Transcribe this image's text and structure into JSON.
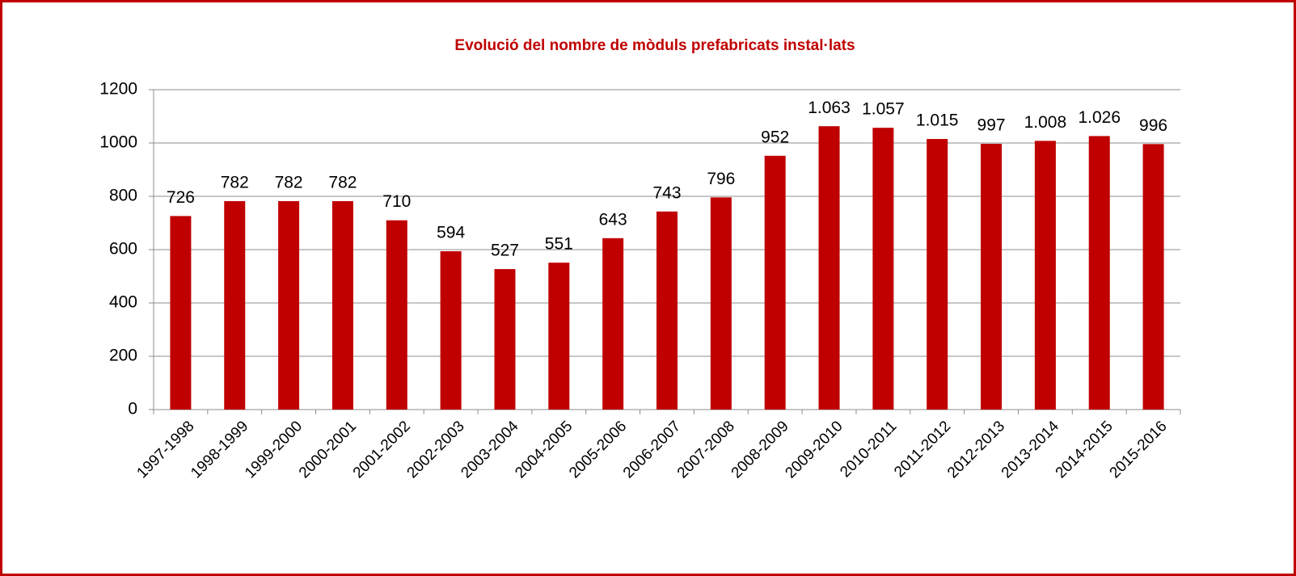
{
  "chart_data": {
    "type": "bar",
    "title": "Evolució del nombre de mòduls prefabricats instal·lats",
    "categories": [
      "1997-1998",
      "1998-1999",
      "1999-2000",
      "2000-2001",
      "2001-2002",
      "2002-2003",
      "2003-2004",
      "2004-2005",
      "2005-2006",
      "2006-2007",
      "2007-2008",
      "2008-2009",
      "2009-2010",
      "2010-2011",
      "2011-2012",
      "2012-2013",
      "2013-2014",
      "2014-2015",
      "2015-2016"
    ],
    "values": [
      726,
      782,
      782,
      782,
      710,
      594,
      527,
      551,
      643,
      743,
      796,
      952,
      1063,
      1057,
      1015,
      997,
      1008,
      1026,
      996
    ],
    "value_labels": [
      "726",
      "782",
      "782",
      "782",
      "710",
      "594",
      "527",
      "551",
      "643",
      "743",
      "796",
      "952",
      "1.063",
      "1.057",
      "1.015",
      "997",
      "1.008",
      "1.026",
      "996"
    ],
    "color": "#c00000",
    "ylim": [
      0,
      1200
    ],
    "yticks": [
      0,
      200,
      400,
      600,
      800,
      1000,
      1200
    ],
    "grid": true
  }
}
